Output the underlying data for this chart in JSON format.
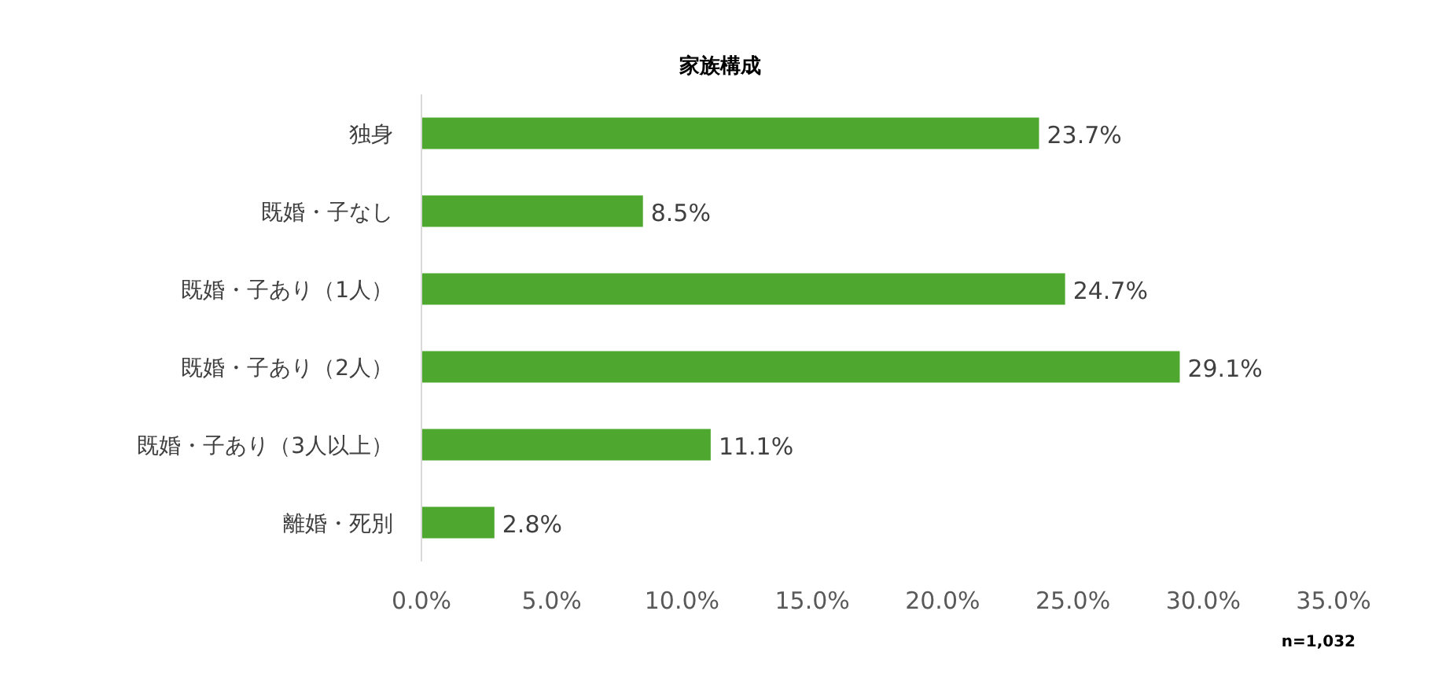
{
  "chart_data": {
    "type": "bar",
    "orientation": "horizontal",
    "title": "家族構成",
    "categories": [
      "独身",
      "既婚・子なし",
      "既婚・子あり（1人）",
      "既婚・子あり（2人）",
      "既婚・子あり（3人以上）",
      "離婚・死別"
    ],
    "values": [
      23.7,
      8.5,
      24.7,
      29.1,
      11.1,
      2.8
    ],
    "value_labels": [
      "23.7%",
      "8.5%",
      "24.7%",
      "29.1%",
      "11.1%",
      "2.8%"
    ],
    "color": "#4ea72e",
    "xlim": [
      0,
      35
    ],
    "xticks": [
      {
        "value": 0,
        "label": "0.0%"
      },
      {
        "value": 5,
        "label": "5.0%"
      },
      {
        "value": 10,
        "label": "10.0%"
      },
      {
        "value": 15,
        "label": "15.0%"
      },
      {
        "value": 20,
        "label": "20.0%"
      },
      {
        "value": 25,
        "label": "25.0%"
      },
      {
        "value": 30,
        "label": "30.0%"
      },
      {
        "value": 35,
        "label": "35.0%"
      }
    ],
    "annotations": [
      "n=1,032"
    ]
  }
}
